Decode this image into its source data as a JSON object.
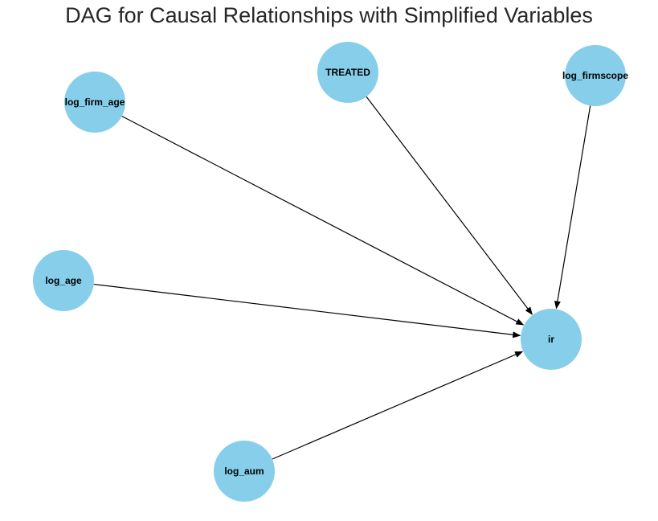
{
  "title": "DAG for Causal Relationships with Simplified Variables",
  "style": {
    "node_color": "#87ceeb",
    "edge_color": "#000000",
    "label_color": "#000000",
    "title_color": "#262626"
  },
  "nodes": [
    {
      "id": "log_firm_age",
      "label": "log_firm_age"
    },
    {
      "id": "TREATED",
      "label": "TREATED"
    },
    {
      "id": "log_firmscope",
      "label": "log_firmscope"
    },
    {
      "id": "log_age",
      "label": "log_age"
    },
    {
      "id": "ir",
      "label": "ir"
    },
    {
      "id": "log_aum",
      "label": "log_aum"
    }
  ],
  "edges": [
    {
      "from": "log_firm_age",
      "to": "ir"
    },
    {
      "from": "TREATED",
      "to": "ir"
    },
    {
      "from": "log_firmscope",
      "to": "ir"
    },
    {
      "from": "log_age",
      "to": "ir"
    },
    {
      "from": "log_aum",
      "to": "ir"
    }
  ]
}
